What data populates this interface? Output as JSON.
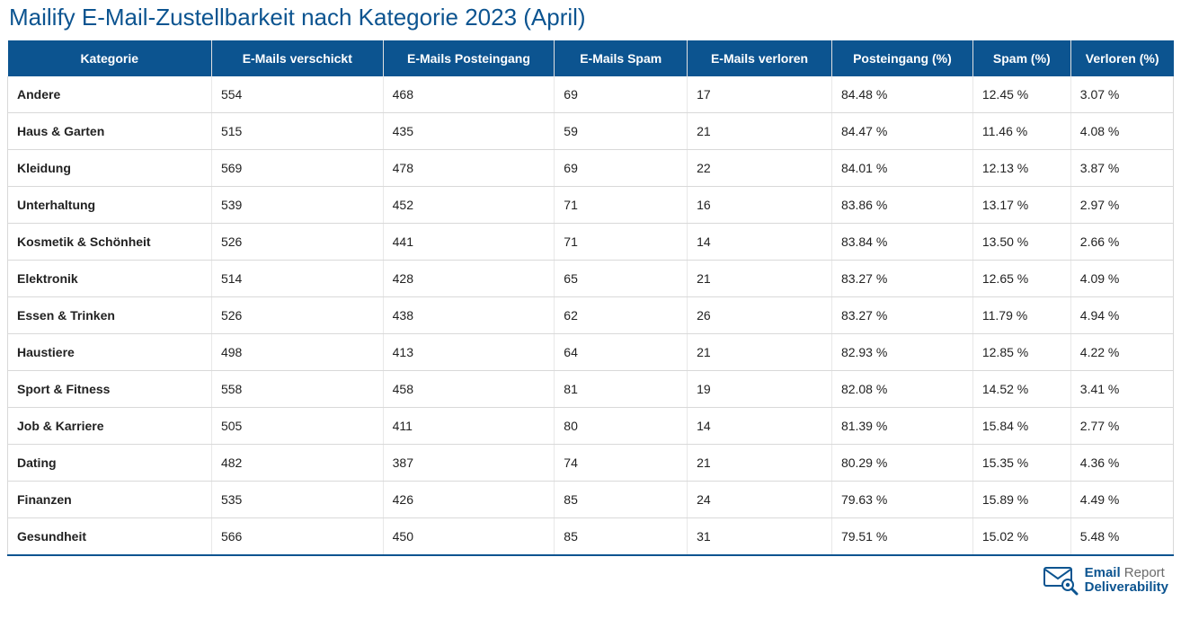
{
  "title": "Mailify E-Mail-Zustellbarkeit nach Kategorie 2023 (April)",
  "colors": {
    "header_bg": "#0c5490",
    "header_text": "#ffffff",
    "title_text": "#0c5490",
    "cell_text": "#222222",
    "border": "#d9d9d9",
    "border_light": "#e8e8e8",
    "background": "#ffffff",
    "logo_primary": "#0c5490",
    "logo_secondary": "#6b6b6b"
  },
  "table": {
    "col_widths_pct": [
      17.5,
      14.7,
      14.7,
      11.4,
      12.4,
      12.1,
      8.4,
      8.8
    ],
    "columns": [
      "Kategorie",
      "E-Mails verschickt",
      "E-Mails Posteingang",
      "E-Mails Spam",
      "E-Mails verloren",
      "Posteingang (%)",
      "Spam (%)",
      "Verloren (%)"
    ],
    "rows": [
      [
        "Andere",
        "554",
        "468",
        "69",
        "17",
        "84.48 %",
        "12.45 %",
        "3.07 %"
      ],
      [
        "Haus & Garten",
        "515",
        "435",
        "59",
        "21",
        "84.47 %",
        "11.46 %",
        "4.08 %"
      ],
      [
        "Kleidung",
        "569",
        "478",
        "69",
        "22",
        "84.01 %",
        "12.13 %",
        "3.87 %"
      ],
      [
        "Unterhaltung",
        "539",
        "452",
        "71",
        "16",
        "83.86 %",
        "13.17 %",
        "2.97 %"
      ],
      [
        "Kosmetik & Schönheit",
        "526",
        "441",
        "71",
        "14",
        "83.84 %",
        "13.50 %",
        "2.66 %"
      ],
      [
        "Elektronik",
        "514",
        "428",
        "65",
        "21",
        "83.27 %",
        "12.65 %",
        "4.09 %"
      ],
      [
        "Essen & Trinken",
        "526",
        "438",
        "62",
        "26",
        "83.27 %",
        "11.79 %",
        "4.94 %"
      ],
      [
        "Haustiere",
        "498",
        "413",
        "64",
        "21",
        "82.93 %",
        "12.85 %",
        "4.22 %"
      ],
      [
        "Sport & Fitness",
        "558",
        "458",
        "81",
        "19",
        "82.08 %",
        "14.52 %",
        "3.41 %"
      ],
      [
        "Job & Karriere",
        "505",
        "411",
        "80",
        "14",
        "81.39 %",
        "15.84 %",
        "2.77 %"
      ],
      [
        "Dating",
        "482",
        "387",
        "74",
        "21",
        "80.29 %",
        "15.35 %",
        "4.36 %"
      ],
      [
        "Finanzen",
        "535",
        "426",
        "85",
        "24",
        "79.63 %",
        "15.89 %",
        "4.49 %"
      ],
      [
        "Gesundheit",
        "566",
        "450",
        "85",
        "31",
        "79.51 %",
        "15.02 %",
        "5.48 %"
      ]
    ]
  },
  "logo": {
    "line1_a": "Email",
    "line1_b": " Report",
    "line2": "Deliverability"
  }
}
